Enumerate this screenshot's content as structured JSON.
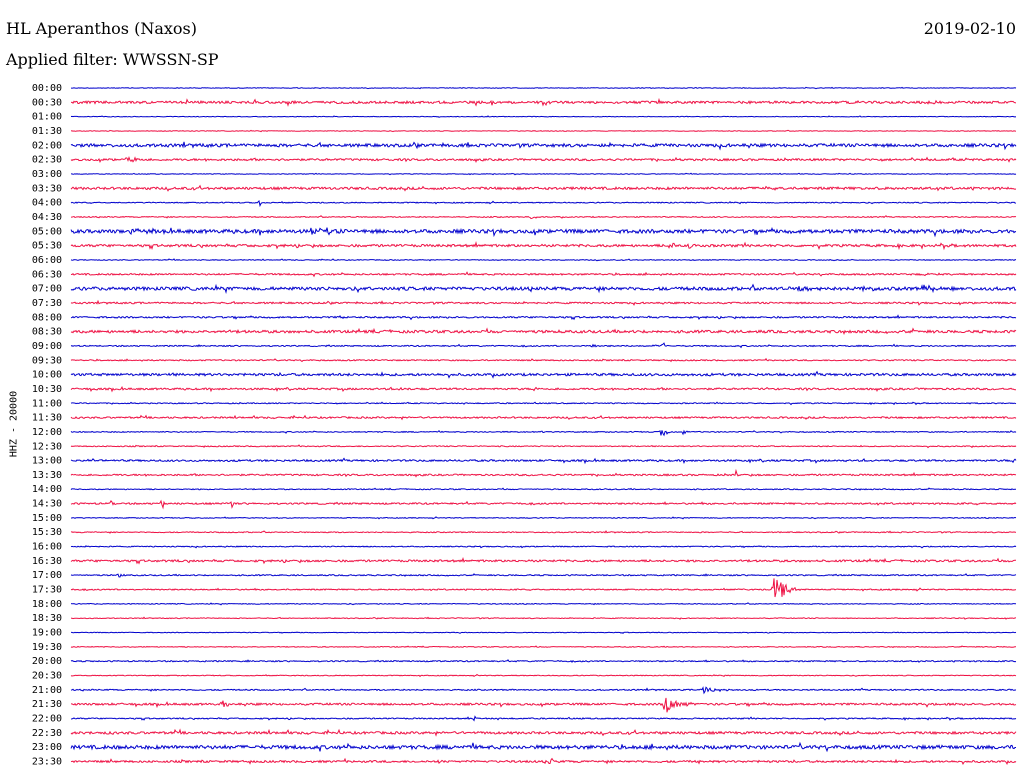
{
  "header": {
    "station": "HL Aperanthos (Naxos)",
    "filter": "Applied filter: WWSSN-SP",
    "date": "2019-02-10"
  },
  "chart_data": {
    "type": "helicorder",
    "title": "HL Aperanthos (Naxos)",
    "subtitle": "Applied filter: WWSSN-SP",
    "date": "2019-02-10",
    "ylabel": "HHZ - 20000",
    "row_minutes": 30,
    "colors": [
      "#0000cc",
      "#ee1144"
    ],
    "rows": [
      "00:00",
      "00:30",
      "01:00",
      "01:30",
      "02:00",
      "02:30",
      "03:00",
      "03:30",
      "04:00",
      "04:30",
      "05:00",
      "05:30",
      "06:00",
      "06:30",
      "07:00",
      "07:30",
      "08:00",
      "08:30",
      "09:00",
      "09:30",
      "10:00",
      "10:30",
      "11:00",
      "11:30",
      "12:00",
      "12:30",
      "13:00",
      "13:30",
      "14:00",
      "14:30",
      "15:00",
      "15:30",
      "16:00",
      "16:30",
      "17:00",
      "17:30",
      "18:00",
      "18:30",
      "19:00",
      "19:30",
      "20:00",
      "20:30",
      "21:00",
      "21:30",
      "22:00",
      "22:30",
      "23:00",
      "23:30"
    ],
    "noise": [
      0.3,
      1.2,
      0.3,
      0.3,
      1.5,
      1.0,
      0.3,
      1.2,
      0.5,
      0.5,
      1.8,
      1.2,
      0.4,
      0.8,
      1.6,
      0.8,
      0.8,
      1.3,
      0.6,
      0.6,
      1.2,
      0.9,
      0.5,
      0.8,
      0.5,
      0.5,
      0.9,
      0.8,
      0.5,
      0.8,
      0.4,
      0.5,
      0.5,
      1.0,
      0.6,
      0.6,
      0.4,
      0.4,
      0.3,
      0.4,
      0.6,
      0.4,
      0.6,
      1.0,
      0.6,
      1.2,
      1.8,
      1.0
    ],
    "events": [
      {
        "row": "00:30",
        "minute": 27.2,
        "amp": 2,
        "dur": 1.0
      },
      {
        "row": "02:30",
        "minute": 1.8,
        "amp": 4,
        "dur": 0.6
      },
      {
        "row": "03:30",
        "minute": 22.0,
        "amp": 2,
        "dur": 0.6
      },
      {
        "row": "04:00",
        "minute": 6.0,
        "amp": 4,
        "dur": 0.1
      },
      {
        "row": "04:30",
        "minute": 14.6,
        "amp": 3,
        "dur": 0.4
      },
      {
        "row": "05:00",
        "minute": 1.8,
        "amp": 4,
        "dur": 1.2
      },
      {
        "row": "05:00",
        "minute": 7.6,
        "amp": 3,
        "dur": 1.0
      },
      {
        "row": "05:30",
        "minute": 19.0,
        "amp": 6,
        "dur": 0.4
      },
      {
        "row": "05:30",
        "minute": 19.6,
        "amp": 3,
        "dur": 0.5
      },
      {
        "row": "06:30",
        "minute": 27.0,
        "amp": 2,
        "dur": 0.6
      },
      {
        "row": "07:00",
        "minute": 23.0,
        "amp": 3,
        "dur": 1.0
      },
      {
        "row": "07:00",
        "minute": 25.0,
        "amp": 4,
        "dur": 1.0
      },
      {
        "row": "07:00",
        "minute": 27.0,
        "amp": 3,
        "dur": 1.0
      },
      {
        "row": "08:00",
        "minute": 8.6,
        "amp": 3,
        "dur": 0.1
      },
      {
        "row": "09:00",
        "minute": 16.6,
        "amp": 4,
        "dur": 0.1
      },
      {
        "row": "09:00",
        "minute": 18.5,
        "amp": 3,
        "dur": 0.3
      },
      {
        "row": "09:00",
        "minute": 18.8,
        "amp": 5,
        "dur": 0.1
      },
      {
        "row": "10:30",
        "minute": 10.4,
        "amp": 3,
        "dur": 0.3
      },
      {
        "row": "10:30",
        "minute": 22.0,
        "amp": 3,
        "dur": 0.3
      },
      {
        "row": "12:00",
        "minute": 14.9,
        "amp": 4,
        "dur": 0.1
      },
      {
        "row": "12:00",
        "minute": 18.7,
        "amp": 8,
        "dur": 0.3
      },
      {
        "row": "12:00",
        "minute": 19.4,
        "amp": 4,
        "dur": 0.2
      },
      {
        "row": "13:00",
        "minute": 0.6,
        "amp": 3,
        "dur": 0.3
      },
      {
        "row": "13:30",
        "minute": 21.1,
        "amp": 6,
        "dur": 0.1
      },
      {
        "row": "14:30",
        "minute": 1.3,
        "amp": 7,
        "dur": 0.1
      },
      {
        "row": "14:30",
        "minute": 2.9,
        "amp": 9,
        "dur": 0.1
      },
      {
        "row": "14:30",
        "minute": 5.1,
        "amp": 7,
        "dur": 0.1
      },
      {
        "row": "17:00",
        "minute": 1.5,
        "amp": 3,
        "dur": 0.2
      },
      {
        "row": "17:30",
        "minute": 22.3,
        "amp": 13,
        "dur": 0.9
      },
      {
        "row": "21:00",
        "minute": 20.0,
        "amp": 4,
        "dur": 0.9
      },
      {
        "row": "21:30",
        "minute": 4.8,
        "amp": 5,
        "dur": 0.3
      },
      {
        "row": "21:30",
        "minute": 18.8,
        "amp": 11,
        "dur": 0.9
      },
      {
        "row": "22:00",
        "minute": 12.8,
        "amp": 4,
        "dur": 0.1
      },
      {
        "row": "23:30",
        "minute": 11.7,
        "amp": 5,
        "dur": 0.1
      },
      {
        "row": "23:30",
        "minute": 15.2,
        "amp": 4,
        "dur": 0.3
      },
      {
        "row": "23:30",
        "minute": 19.9,
        "amp": 6,
        "dur": 0.1
      }
    ]
  }
}
